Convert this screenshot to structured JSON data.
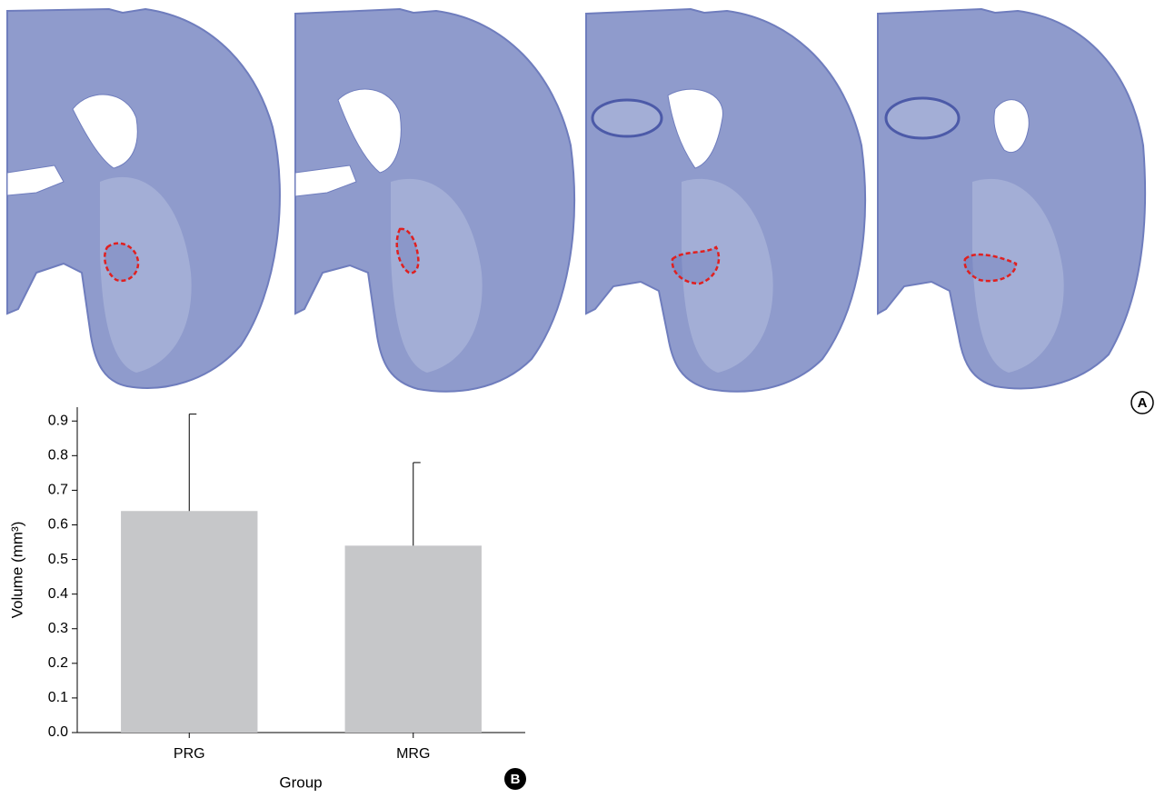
{
  "images_panel": {
    "label": "A"
  },
  "chart_data": {
    "type": "bar",
    "panel_label": "B",
    "xlabel": "Group",
    "ylabel": "Volume (mm³)",
    "categories": [
      "PRG",
      "MRG"
    ],
    "values": [
      0.64,
      0.54
    ],
    "errors": [
      0.28,
      0.24
    ],
    "color": "#c6c7c9",
    "ylim": [
      0,
      0.94
    ],
    "yticks": [
      {
        "value": 0,
        "label": "0.0"
      },
      0.1,
      0.2,
      0.3,
      0.4,
      0.5,
      0.6,
      0.7,
      0.8,
      0.9
    ],
    "grid": false
  }
}
